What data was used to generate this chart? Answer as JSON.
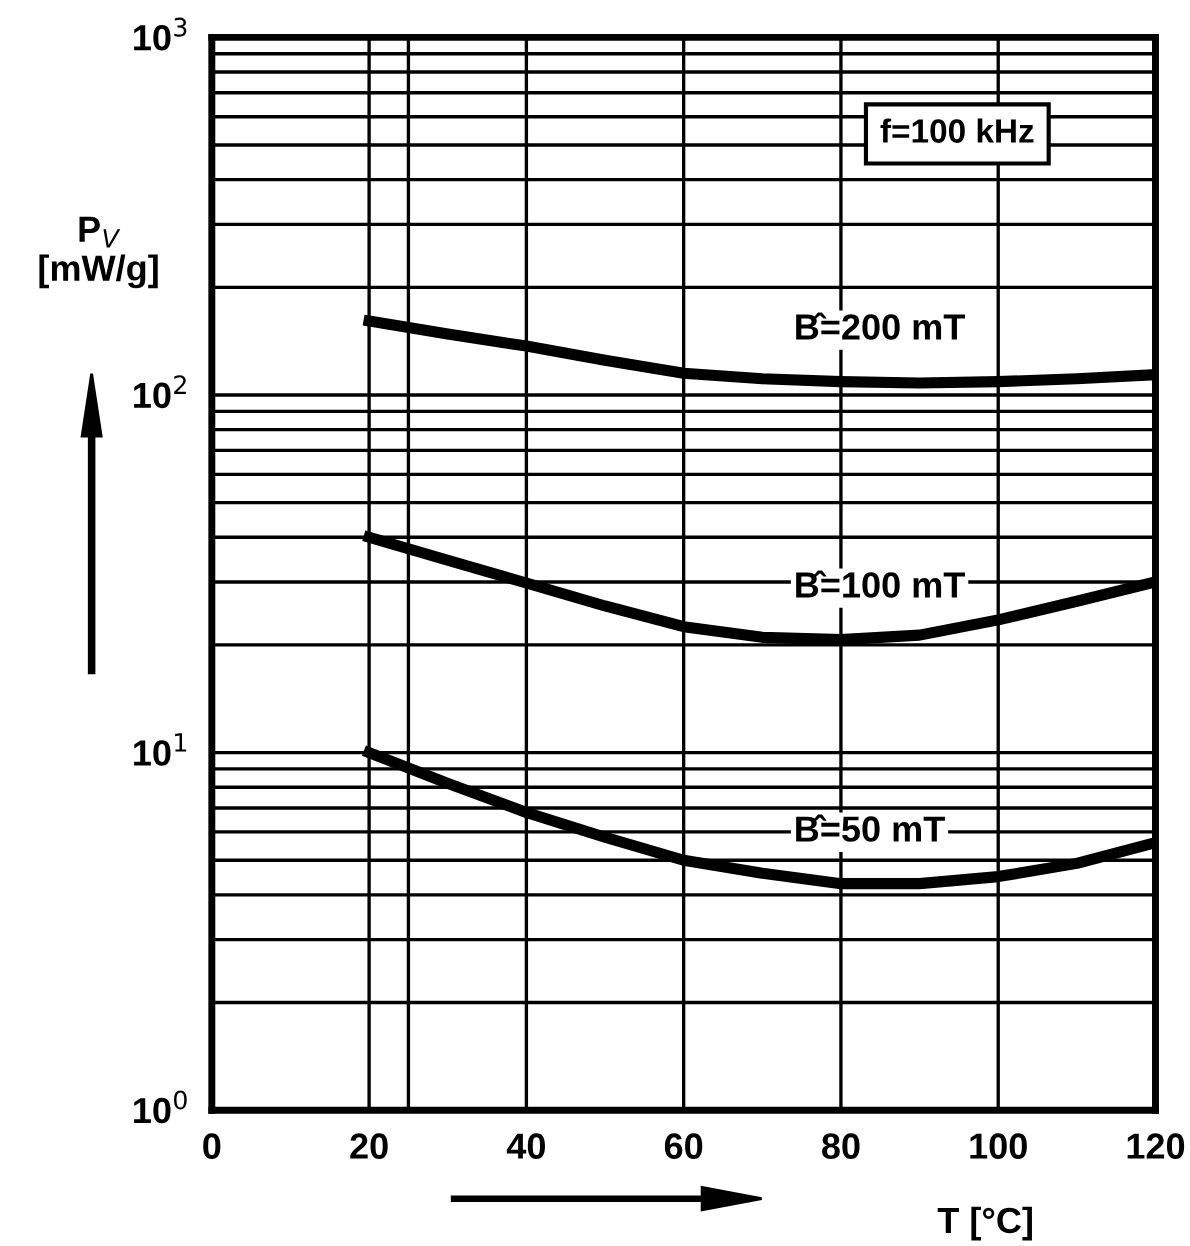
{
  "chart_data": {
    "type": "line",
    "xlabel": "T [°C]",
    "ylabel": "P$_{V}$\n[mW/g]",
    "annotations": [
      "f=100 kHz"
    ],
    "x": [
      20,
      30,
      40,
      50,
      60,
      70,
      80,
      90,
      100,
      110,
      120
    ],
    "series": [
      {
        "name": "B̂=200 mT",
        "color": "#000000",
        "values": [
          161,
          148,
          137,
          125,
          115,
          111,
          109,
          108,
          109,
          111,
          114
        ]
      },
      {
        "name": "B̂=100 mT",
        "color": "#000000",
        "values": [
          40,
          34.5,
          29.8,
          25.7,
          22.5,
          21,
          20.7,
          21.3,
          23.5,
          26.5,
          30
        ]
      },
      {
        "name": "B̂=50 mT",
        "color": "#000000",
        "values": [
          10,
          8.2,
          6.8,
          5.8,
          5.0,
          4.6,
          4.3,
          4.3,
          4.5,
          4.9,
          5.6
        ]
      }
    ],
    "log": "y",
    "xlim": [
      0,
      120
    ],
    "ylim": [
      1,
      1000
    ],
    "xticks": [
      0,
      20,
      {
        "value": 25,
        "label": null
      },
      40,
      60,
      80,
      100,
      120
    ],
    "yticks": [
      {
        "value": 1,
        "label": "10$^{0}$"
      },
      {
        "value": 10,
        "label": "10$^{1}$"
      },
      {
        "value": 100,
        "label": "10$^{2}$"
      },
      {
        "value": 1000,
        "label": "10$^{3}$"
      }
    ],
    "grid": true,
    "legend": false,
    "marker": "none",
    "line_style": "solid"
  }
}
